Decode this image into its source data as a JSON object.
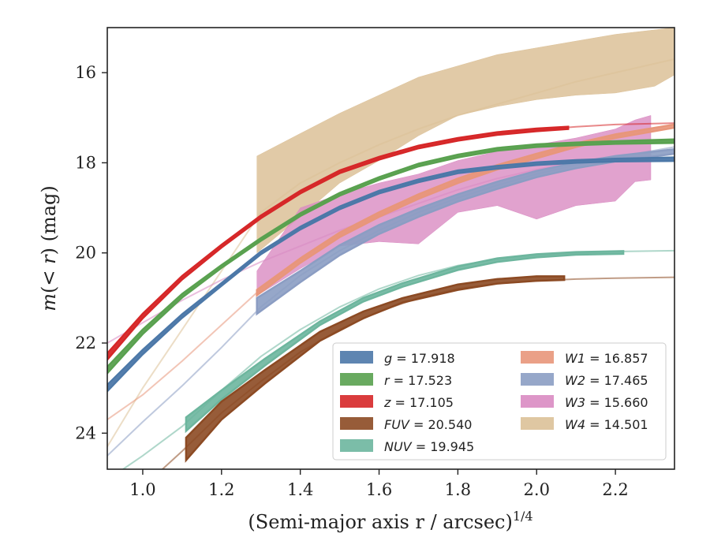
{
  "chart_data": {
    "type": "line",
    "xlabel": "(Semi-major axis r / arcsec)",
    "xlabel_sup": "1/4",
    "ylabel_parts": [
      "m",
      "(< ",
      "r",
      ") (mag)"
    ],
    "xlim": [
      0.91,
      2.35
    ],
    "ylim": [
      24.8,
      15.0
    ],
    "y_inverted": true,
    "x_ticks": [
      1.0,
      1.2,
      1.4,
      1.6,
      1.8,
      2.0,
      2.2
    ],
    "x_tick_labels": [
      "1.0",
      "1.2",
      "1.4",
      "1.6",
      "1.8",
      "2.0",
      "2.2"
    ],
    "y_ticks": [
      16,
      18,
      20,
      22,
      24
    ],
    "y_tick_labels": [
      "16",
      "18",
      "20",
      "22",
      "24"
    ],
    "grid": false,
    "legend_position": "lower-right",
    "legend_columns": 2,
    "series": [
      {
        "name": "g",
        "label_value": "17.918",
        "color": "#4c78a8",
        "model_x": [
          0.91,
          1.0,
          1.1,
          1.2,
          1.3,
          1.4,
          1.5,
          1.6,
          1.7,
          1.8,
          1.9,
          2.0,
          2.1,
          2.2,
          2.35
        ],
        "model_y": [
          23.0,
          22.2,
          21.4,
          20.7,
          20.0,
          19.45,
          19.0,
          18.65,
          18.4,
          18.2,
          18.1,
          18.02,
          17.97,
          17.94,
          17.92
        ],
        "band_x": [
          0.91,
          1.0,
          1.1,
          1.2,
          1.3,
          1.4,
          1.5,
          1.6,
          1.7,
          1.8,
          1.9,
          2.0,
          2.1,
          2.2,
          2.35
        ],
        "band_lo": [
          22.93,
          22.15,
          21.36,
          20.67,
          19.97,
          19.42,
          18.97,
          18.62,
          18.37,
          18.17,
          18.07,
          17.99,
          17.94,
          17.91,
          17.88
        ],
        "band_hi": [
          23.07,
          22.25,
          21.44,
          20.73,
          20.03,
          19.48,
          19.03,
          18.68,
          18.43,
          18.23,
          18.13,
          18.05,
          18.0,
          17.97,
          17.96
        ],
        "band_end": 2.35
      },
      {
        "name": "r",
        "label_value": "17.523",
        "color": "#59a14f",
        "model_x": [
          0.91,
          1.0,
          1.1,
          1.2,
          1.3,
          1.4,
          1.5,
          1.6,
          1.7,
          1.8,
          1.9,
          2.0,
          2.1,
          2.2,
          2.35
        ],
        "model_y": [
          22.6,
          21.75,
          20.95,
          20.3,
          19.7,
          19.15,
          18.7,
          18.35,
          18.05,
          17.85,
          17.7,
          17.62,
          17.58,
          17.55,
          17.52
        ],
        "band_x": [
          0.91,
          1.0,
          1.1,
          1.2,
          1.3,
          1.4,
          1.5,
          1.6,
          1.7,
          1.8,
          1.9,
          2.0,
          2.1,
          2.2,
          2.35
        ],
        "band_lo": [
          22.53,
          21.7,
          20.91,
          20.27,
          19.67,
          19.12,
          18.67,
          18.32,
          18.02,
          17.82,
          17.67,
          17.59,
          17.55,
          17.52,
          17.48
        ],
        "band_hi": [
          22.67,
          21.8,
          20.99,
          20.33,
          19.73,
          19.18,
          18.73,
          18.38,
          18.08,
          17.88,
          17.73,
          17.65,
          17.61,
          17.58,
          17.56
        ],
        "band_end": 2.35
      },
      {
        "name": "z",
        "label_value": "17.105",
        "color": "#d62728",
        "model_x": [
          0.91,
          1.0,
          1.1,
          1.2,
          1.3,
          1.4,
          1.5,
          1.6,
          1.7,
          1.8,
          1.9,
          2.0,
          2.1,
          2.2,
          2.35
        ],
        "model_y": [
          22.3,
          21.4,
          20.55,
          19.85,
          19.2,
          18.65,
          18.2,
          17.9,
          17.65,
          17.48,
          17.35,
          17.27,
          17.2,
          17.15,
          17.12
        ],
        "band_x": [
          0.91,
          1.0,
          1.1,
          1.2,
          1.3,
          1.4,
          1.5,
          1.6,
          1.7,
          1.8,
          1.9,
          2.0,
          2.08
        ],
        "band_lo": [
          22.23,
          21.35,
          20.51,
          19.82,
          19.17,
          18.62,
          18.17,
          17.87,
          17.62,
          17.45,
          17.32,
          17.24,
          17.2
        ],
        "band_hi": [
          22.37,
          21.45,
          20.59,
          19.88,
          19.23,
          18.68,
          18.23,
          17.93,
          17.68,
          17.51,
          17.38,
          17.3,
          17.25
        ],
        "band_end": 2.08
      },
      {
        "name": "FUV",
        "label_value": "20.540",
        "color": "#8c4a23",
        "model_x": [
          1.05,
          1.1,
          1.2,
          1.3,
          1.4,
          1.5,
          1.6,
          1.7,
          1.8,
          1.9,
          2.0,
          2.1,
          2.2,
          2.35
        ],
        "model_y": [
          24.8,
          24.4,
          23.55,
          22.85,
          22.2,
          21.7,
          21.3,
          21.0,
          20.8,
          20.68,
          20.62,
          20.58,
          20.56,
          20.54
        ],
        "band_x": [
          1.11,
          1.2,
          1.31,
          1.45,
          1.56,
          1.66,
          1.8,
          1.9,
          2.0,
          2.07
        ],
        "band_lo": [
          24.1,
          23.3,
          22.6,
          21.75,
          21.3,
          21.0,
          20.7,
          20.58,
          20.52,
          20.52
        ],
        "band_hi": [
          24.6,
          23.7,
          22.9,
          21.95,
          21.45,
          21.1,
          20.82,
          20.68,
          20.62,
          20.6
        ],
        "band_end": 2.07
      },
      {
        "name": "NUV",
        "label_value": "19.945",
        "color": "#6db69e",
        "model_x": [
          0.95,
          1.0,
          1.1,
          1.2,
          1.3,
          1.4,
          1.5,
          1.6,
          1.7,
          1.8,
          1.9,
          2.0,
          2.1,
          2.2,
          2.35
        ],
        "model_y": [
          24.8,
          24.5,
          23.85,
          23.05,
          22.3,
          21.7,
          21.2,
          20.8,
          20.5,
          20.28,
          20.14,
          20.05,
          20.0,
          19.97,
          19.95
        ],
        "band_x": [
          1.11,
          1.2,
          1.31,
          1.45,
          1.56,
          1.66,
          1.8,
          1.9,
          2.0,
          2.1,
          2.22
        ],
        "band_lo": [
          23.65,
          23.05,
          22.35,
          21.52,
          21.0,
          20.67,
          20.3,
          20.12,
          20.03,
          19.98,
          19.96
        ],
        "band_hi": [
          23.95,
          23.25,
          22.5,
          21.6,
          21.08,
          20.75,
          20.38,
          20.2,
          20.1,
          20.04,
          20.02
        ],
        "band_end": 2.22
      },
      {
        "name": "W1",
        "label_value": "16.857",
        "color": "#e8967a",
        "model_x": [
          0.91,
          1.0,
          1.1,
          1.2,
          1.3,
          1.4,
          1.5,
          1.6,
          1.7,
          1.8,
          1.9,
          2.0,
          2.1,
          2.2,
          2.35
        ],
        "model_y": [
          23.7,
          23.15,
          22.4,
          21.6,
          20.8,
          20.15,
          19.6,
          19.15,
          18.75,
          18.4,
          18.1,
          17.85,
          17.6,
          17.4,
          17.15
        ],
        "band_x": [
          1.29,
          1.4,
          1.5,
          1.6,
          1.7,
          1.8,
          1.9,
          2.0,
          2.1,
          2.2,
          2.35
        ],
        "band_lo": [
          20.82,
          20.12,
          19.55,
          19.1,
          18.7,
          18.35,
          18.05,
          17.8,
          17.57,
          17.37,
          17.15
        ],
        "band_hi": [
          20.94,
          20.22,
          19.65,
          19.2,
          18.8,
          18.45,
          18.15,
          17.9,
          17.65,
          17.45,
          17.22
        ],
        "band_end": 2.35
      },
      {
        "name": "W2",
        "label_value": "17.465",
        "color": "#8b9dc3",
        "model_x": [
          0.91,
          1.0,
          1.1,
          1.2,
          1.3,
          1.4,
          1.5,
          1.6,
          1.7,
          1.8,
          1.9,
          2.0,
          2.1,
          2.2,
          2.35
        ],
        "model_y": [
          24.5,
          23.75,
          22.95,
          22.1,
          21.2,
          20.5,
          19.95,
          19.5,
          19.1,
          18.78,
          18.5,
          18.25,
          18.05,
          17.88,
          17.65
        ],
        "band_x": [
          1.29,
          1.4,
          1.5,
          1.6,
          1.7,
          1.8,
          1.9,
          2.0,
          2.1,
          2.2,
          2.35
        ],
        "band_lo": [
          21.0,
          20.4,
          19.83,
          19.38,
          19.02,
          18.7,
          18.42,
          18.18,
          18.0,
          17.85,
          17.7
        ],
        "band_hi": [
          21.35,
          20.65,
          20.05,
          19.58,
          19.2,
          18.86,
          18.58,
          18.32,
          18.12,
          17.97,
          17.8
        ],
        "band_end": 2.35
      },
      {
        "name": "W3",
        "label_value": "15.660",
        "color": "#d98bc2",
        "model_x": [
          0.91,
          1.0,
          1.1,
          1.2,
          1.3,
          1.4,
          1.5,
          1.6,
          1.7,
          1.8,
          1.9,
          2.0,
          2.1,
          2.2,
          2.35
        ],
        "model_y": [
          22.0,
          21.55,
          21.05,
          20.6,
          20.2,
          19.85,
          19.5,
          19.2,
          18.9,
          18.6,
          18.35,
          18.15,
          17.98,
          17.85,
          17.7
        ],
        "band_x": [
          1.29,
          1.4,
          1.5,
          1.6,
          1.7,
          1.8,
          1.9,
          2.0,
          2.1,
          2.2,
          2.25,
          2.29
        ],
        "band_lo": [
          20.4,
          19.0,
          18.7,
          18.45,
          18.25,
          17.95,
          17.75,
          17.6,
          17.45,
          17.25,
          17.05,
          16.95
        ],
        "band_hi": [
          20.95,
          20.35,
          19.85,
          19.75,
          19.8,
          19.1,
          18.95,
          19.25,
          18.95,
          18.85,
          18.42,
          18.38
        ],
        "band_end": 2.29
      },
      {
        "name": "W4",
        "label_value": "14.501",
        "color": "#dcc198",
        "model_x": [
          0.91,
          1.0,
          1.1,
          1.2,
          1.3,
          1.4,
          1.5,
          1.6,
          1.7,
          1.8,
          1.9,
          2.0,
          2.1,
          2.2,
          2.35
        ],
        "model_y": [
          24.3,
          23.0,
          21.7,
          20.4,
          19.1,
          18.45,
          18.0,
          17.6,
          17.25,
          16.95,
          16.7,
          16.45,
          16.2,
          16.0,
          15.7
        ],
        "band_x": [
          1.29,
          1.4,
          1.5,
          1.6,
          1.7,
          1.8,
          1.9,
          2.0,
          2.1,
          2.2,
          2.3,
          2.35
        ],
        "band_lo": [
          17.85,
          17.35,
          16.9,
          16.5,
          16.1,
          15.85,
          15.6,
          15.45,
          15.3,
          15.15,
          15.05,
          15.0
        ],
        "band_hi": [
          20.0,
          19.2,
          18.45,
          17.95,
          17.4,
          16.95,
          16.75,
          16.6,
          16.5,
          16.45,
          16.3,
          16.05
        ],
        "band_end": 2.35
      }
    ],
    "legend": [
      {
        "label": "g = 17.918",
        "color": "#4c78a8",
        "col": 0,
        "row": 0
      },
      {
        "label": "r = 17.523",
        "color": "#59a14f",
        "col": 0,
        "row": 1
      },
      {
        "label": "z = 17.105",
        "color": "#d62728",
        "col": 0,
        "row": 2
      },
      {
        "label": "FUV = 20.540",
        "color": "#8c4a23",
        "col": 0,
        "row": 3
      },
      {
        "label": "NUV = 19.945",
        "color": "#6db69e",
        "col": 0,
        "row": 4
      },
      {
        "label": "W1 = 16.857",
        "color": "#e8967a",
        "col": 1,
        "row": 0
      },
      {
        "label": "W2 = 17.465",
        "color": "#8b9dc3",
        "col": 1,
        "row": 1
      },
      {
        "label": "W3 = 15.660",
        "color": "#d98bc2",
        "col": 1,
        "row": 2
      },
      {
        "label": "W4 = 14.501",
        "color": "#dcc198",
        "col": 1,
        "row": 3
      }
    ]
  }
}
